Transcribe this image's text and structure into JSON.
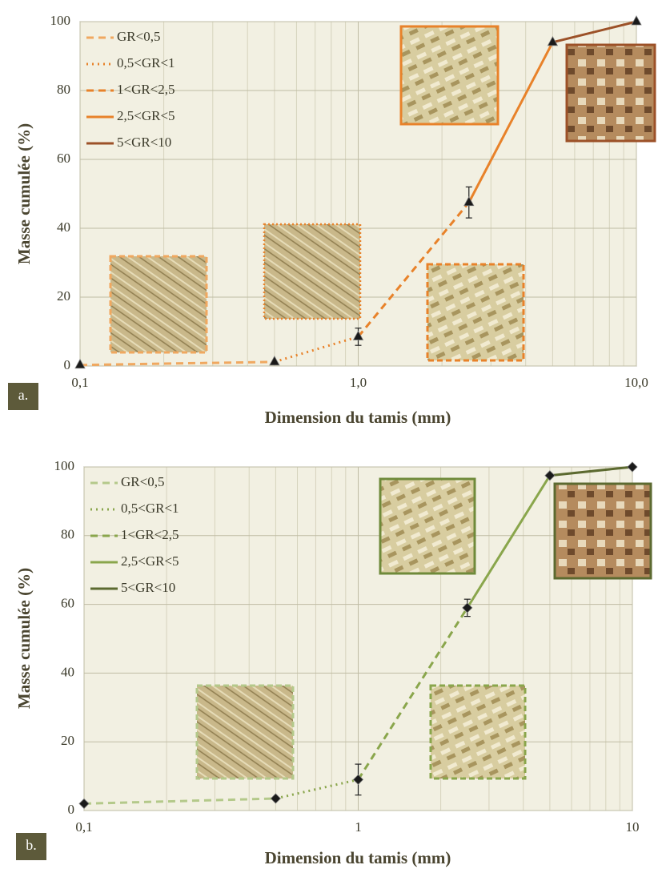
{
  "chart_data": [
    {
      "type": "line",
      "panel": "a.",
      "xlabel": "Dimension du tamis (mm)",
      "ylabel": "Masse cumulée (%)",
      "xscale": "log",
      "xlim": [
        0.1,
        10
      ],
      "xticks": [
        {
          "value": 0.1,
          "label": "0,1"
        },
        {
          "value": 1,
          "label": "1,0"
        },
        {
          "value": 10,
          "label": "10,0"
        }
      ],
      "ylim": [
        0,
        100
      ],
      "yticks": [
        0,
        20,
        40,
        60,
        80,
        100
      ],
      "grid": true,
      "marker": "triangle",
      "series": [
        {
          "name": "GR<0,5",
          "color": "#f0a860",
          "dash": "dashed",
          "x": [
            0.1,
            0.5
          ],
          "values": [
            0.3,
            1.2
          ]
        },
        {
          "name": "0,5<GR<1",
          "color": "#e8822a",
          "dash": "dotted",
          "x": [
            0.5,
            1
          ],
          "values": [
            1.2,
            8.5
          ]
        },
        {
          "name": "1<GR<2,5",
          "color": "#e8822a",
          "dash": "dashed",
          "x": [
            1,
            2.5
          ],
          "values": [
            8.5,
            47.5
          ]
        },
        {
          "name": "2,5<GR<5",
          "color": "#e8822a",
          "dash": "solid",
          "x": [
            2.5,
            5
          ],
          "values": [
            47.5,
            94
          ]
        },
        {
          "name": "5<GR<10",
          "color": "#9c5128",
          "dash": "solid",
          "x": [
            5,
            10
          ],
          "values": [
            94,
            100
          ]
        }
      ],
      "points": {
        "x": [
          0.1,
          0.5,
          1,
          2.5,
          5,
          10
        ],
        "values": [
          0.3,
          1.2,
          8.5,
          47.5,
          94,
          100
        ],
        "errors": [
          null,
          null,
          2.5,
          4.5,
          null,
          null
        ]
      }
    },
    {
      "type": "line",
      "panel": "b.",
      "xlabel": "Dimension du tamis (mm)",
      "ylabel": "Masse cumulée (%)",
      "xscale": "log",
      "xlim": [
        0.1,
        10
      ],
      "xticks": [
        {
          "value": 0.1,
          "label": "0,1"
        },
        1,
        10
      ],
      "ylim": [
        0,
        100
      ],
      "yticks": [
        0,
        20,
        40,
        60,
        80,
        100
      ],
      "grid": true,
      "marker": "diamond",
      "series": [
        {
          "name": "GR<0,5",
          "color": "#b4c98a",
          "dash": "dashed",
          "x": [
            0.1,
            0.5
          ],
          "values": [
            2,
            3.5
          ]
        },
        {
          "name": "0,5<GR<1",
          "color": "#8aa64c",
          "dash": "dotted",
          "x": [
            0.5,
            1
          ],
          "values": [
            3.5,
            9
          ]
        },
        {
          "name": "1<GR<2,5",
          "color": "#8aa64c",
          "dash": "dashed",
          "x": [
            1,
            2.5
          ],
          "values": [
            9,
            59
          ]
        },
        {
          "name": "2,5<GR<5",
          "color": "#8aa64c",
          "dash": "solid",
          "x": [
            2.5,
            5
          ],
          "values": [
            59,
            97.5
          ]
        },
        {
          "name": "5<GR<10",
          "color": "#5c6a30",
          "dash": "solid",
          "x": [
            5,
            10
          ],
          "values": [
            97.5,
            100
          ]
        }
      ],
      "points": {
        "x": [
          0.1,
          0.5,
          1,
          2.5,
          5,
          10
        ],
        "values": [
          2,
          3.5,
          9,
          59,
          97.5,
          100
        ],
        "errors": [
          null,
          null,
          4.5,
          2.5,
          null,
          null
        ]
      }
    }
  ]
}
